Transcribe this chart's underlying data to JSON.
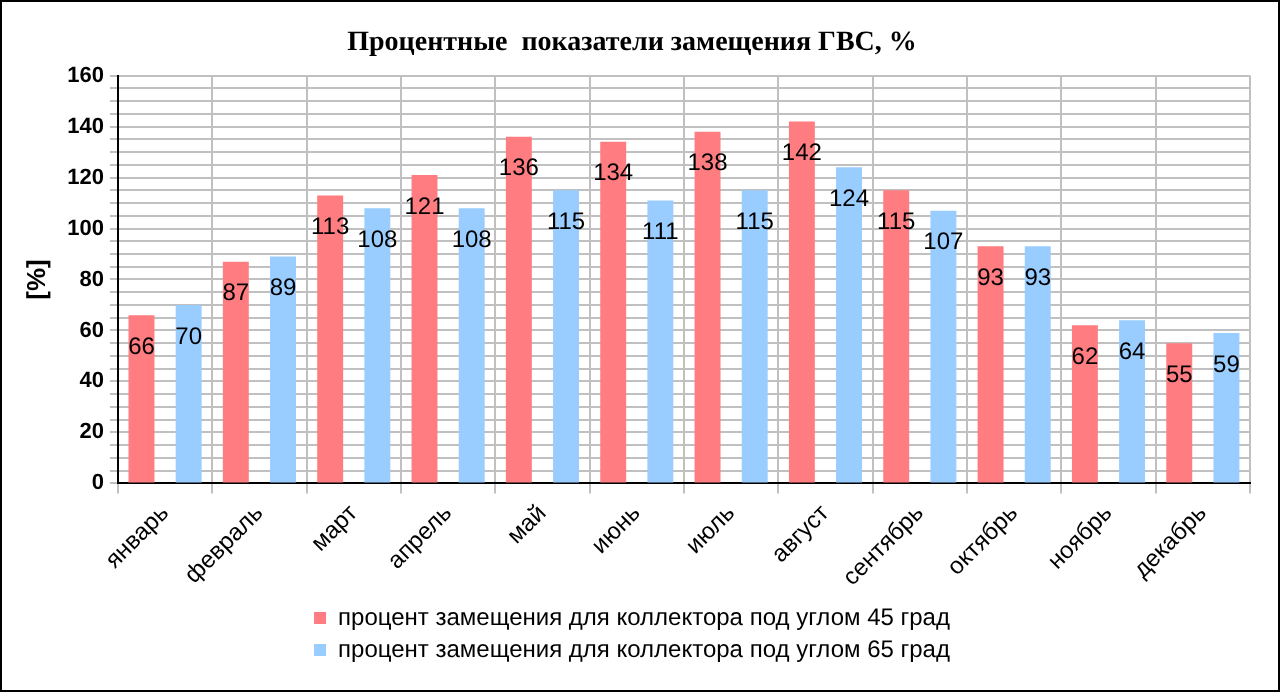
{
  "chart_data": {
    "type": "bar",
    "title": "Процентные  показатели замещения ГВС, %",
    "ylabel": "[%]",
    "categories": [
      "январь",
      "февраль",
      "март",
      "апрель",
      "май",
      "июнь",
      "июль",
      "август",
      "сентябрь",
      "октябрь",
      "ноябрь",
      "декабрь"
    ],
    "series": [
      {
        "name": "процент замещения для коллектора под углом 45 град",
        "color": "#ff7c80",
        "values": [
          66,
          87,
          113,
          121,
          136,
          134,
          138,
          142,
          115,
          93,
          62,
          55
        ]
      },
      {
        "name": "процент замещения для коллектора под углом 65 град",
        "color": "#99ccff",
        "values": [
          70,
          89,
          108,
          108,
          115,
          111,
          115,
          124,
          107,
          93,
          64,
          59
        ]
      }
    ],
    "ylim": [
      0,
      160
    ],
    "yticks": [
      0,
      {
        "value": 5,
        "label": null
      },
      {
        "value": 10,
        "label": null
      },
      {
        "value": 15,
        "label": null
      },
      20,
      {
        "value": 25,
        "label": null
      },
      {
        "value": 30,
        "label": null
      },
      {
        "value": 35,
        "label": null
      },
      40,
      {
        "value": 45,
        "label": null
      },
      {
        "value": 50,
        "label": null
      },
      {
        "value": 55,
        "label": null
      },
      60,
      {
        "value": 65,
        "label": null
      },
      {
        "value": 70,
        "label": null
      },
      {
        "value": 75,
        "label": null
      },
      80,
      {
        "value": 85,
        "label": null
      },
      {
        "value": 90,
        "label": null
      },
      {
        "value": 95,
        "label": null
      },
      100,
      {
        "value": 105,
        "label": null
      },
      {
        "value": 110,
        "label": null
      },
      {
        "value": 115,
        "label": null
      },
      120,
      {
        "value": 125,
        "label": null
      },
      {
        "value": 130,
        "label": null
      },
      {
        "value": 135,
        "label": null
      },
      140,
      {
        "value": 145,
        "label": null
      },
      {
        "value": 150,
        "label": null
      },
      {
        "value": 155,
        "label": null
      },
      160
    ],
    "grid": true,
    "legend": "bottom",
    "data_labels": true
  }
}
